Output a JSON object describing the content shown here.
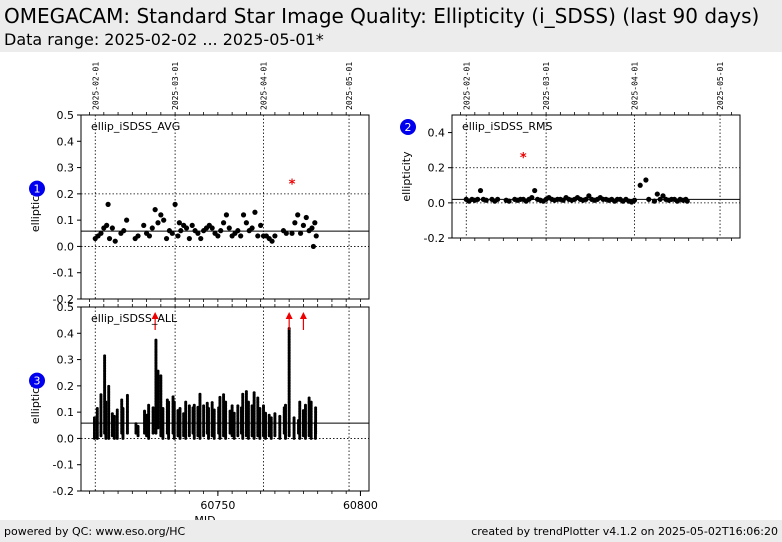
{
  "header": {
    "title": "OMEGACAM: Standard Star Image Quality: Ellipticity (i_SDSS) (last 90 days)",
    "subtitle": "Data range: 2025-02-02 ... 2025-05-01*"
  },
  "footer": {
    "left": "powered by QC: www.eso.org/HC",
    "right": "created by trendPlotter v4.1.2 on 2025-05-02T16:06:20"
  },
  "colors": {
    "badge": "#0000ee",
    "outlier": "#ee0000",
    "points": "#000000"
  },
  "chart_data": [
    {
      "type": "scatter",
      "label": "ellip_iSDSS_AVG",
      "badge": "1",
      "ylabel": "ellipticity",
      "ylim": [
        -0.2,
        0.5
      ],
      "yticks": [
        "-0.2",
        "-0.1",
        "0.0",
        "0.1",
        "0.2",
        "0.3",
        "0.4",
        "0.5"
      ],
      "xlim": [
        60702,
        60803
      ],
      "date_lines": [
        {
          "label": "2025-02-01",
          "mjd": 60707
        },
        {
          "label": "2025-03-01",
          "mjd": 60735
        },
        {
          "label": "2025-04-01",
          "mjd": 60766
        },
        {
          "label": "2025-05-01",
          "mjd": 60796
        }
      ],
      "reference_line": 0.058,
      "dotted_line": 0.2,
      "points": [
        [
          60707,
          0.03
        ],
        [
          60708,
          0.04
        ],
        [
          60709,
          0.05
        ],
        [
          60710,
          0.07
        ],
        [
          60711,
          0.08
        ],
        [
          60711.5,
          0.16
        ],
        [
          60712,
          0.03
        ],
        [
          60713,
          0.07
        ],
        [
          60714,
          0.02
        ],
        [
          60716,
          0.05
        ],
        [
          60717,
          0.06
        ],
        [
          60718,
          0.1
        ],
        [
          60721,
          0.03
        ],
        [
          60722,
          0.04
        ],
        [
          60724,
          0.08
        ],
        [
          60725,
          0.05
        ],
        [
          60726,
          0.04
        ],
        [
          60727,
          0.07
        ],
        [
          60728,
          0.14
        ],
        [
          60729,
          0.09
        ],
        [
          60730,
          0.12
        ],
        [
          60731,
          0.1
        ],
        [
          60732,
          0.03
        ],
        [
          60733,
          0.06
        ],
        [
          60734,
          0.05
        ],
        [
          60735,
          0.16
        ],
        [
          60736,
          0.04
        ],
        [
          60736.5,
          0.09
        ],
        [
          60737,
          0.06
        ],
        [
          60738,
          0.08
        ],
        [
          60739,
          0.07
        ],
        [
          60740,
          0.03
        ],
        [
          60741,
          0.08
        ],
        [
          60742,
          0.06
        ],
        [
          60743,
          0.05
        ],
        [
          60744,
          0.03
        ],
        [
          60745,
          0.06
        ],
        [
          60746,
          0.07
        ],
        [
          60747,
          0.08
        ],
        [
          60748,
          0.07
        ],
        [
          60749,
          0.05
        ],
        [
          60750,
          0.04
        ],
        [
          60751,
          0.06
        ],
        [
          60752,
          0.09
        ],
        [
          60753,
          0.12
        ],
        [
          60754,
          0.07
        ],
        [
          60755,
          0.04
        ],
        [
          60756,
          0.05
        ],
        [
          60757,
          0.06
        ],
        [
          60758,
          0.04
        ],
        [
          60759,
          0.12
        ],
        [
          60760,
          0.09
        ],
        [
          60761,
          0.06
        ],
        [
          60762,
          0.07
        ],
        [
          60763,
          0.13
        ],
        [
          60764,
          0.04
        ],
        [
          60765,
          0.08
        ],
        [
          60766,
          0.04
        ],
        [
          60767,
          0.04
        ],
        [
          60768,
          0.03
        ],
        [
          60769,
          0.02
        ],
        [
          60770,
          0.04
        ],
        [
          60773,
          0.06
        ],
        [
          60774,
          0.05
        ],
        [
          60776,
          0.05
        ],
        [
          60777,
          0.09
        ],
        [
          60778,
          0.12
        ],
        [
          60779,
          0.05
        ],
        [
          60780,
          0.08
        ],
        [
          60781,
          0.11
        ],
        [
          60782,
          0.06
        ],
        [
          60783,
          0.07
        ],
        [
          60783.5,
          0.0
        ],
        [
          60784,
          0.09
        ],
        [
          60784.5,
          0.04
        ]
      ],
      "outliers": [
        [
          60776,
          0.24
        ]
      ]
    },
    {
      "type": "scatter",
      "label": "ellip_iSDSS_RMS",
      "badge": "2",
      "ylabel": "ellipticity",
      "ylim": [
        -0.2,
        0.5
      ],
      "yticks": [
        "-0.2",
        "0.0",
        "0.2",
        "0.4"
      ],
      "xlim": [
        60702,
        60803
      ],
      "date_lines": [
        {
          "label": "2025-02-01",
          "mjd": 60707
        },
        {
          "label": "2025-03-01",
          "mjd": 60735
        },
        {
          "label": "2025-04-01",
          "mjd": 60766
        },
        {
          "label": "2025-05-01",
          "mjd": 60796
        }
      ],
      "reference_line": 0.02,
      "dotted_line": 0.2,
      "points": [
        [
          60707,
          0.02
        ],
        [
          60708,
          0.01
        ],
        [
          60709,
          0.02
        ],
        [
          60710,
          0.015
        ],
        [
          60711,
          0.02
        ],
        [
          60712,
          0.07
        ],
        [
          60713,
          0.02
        ],
        [
          60714,
          0.015
        ],
        [
          60716,
          0.02
        ],
        [
          60717,
          0.01
        ],
        [
          60718,
          0.02
        ],
        [
          60721,
          0.015
        ],
        [
          60722,
          0.01
        ],
        [
          60724,
          0.02
        ],
        [
          60725,
          0.015
        ],
        [
          60726,
          0.02
        ],
        [
          60727,
          0.02
        ],
        [
          60728,
          0.01
        ],
        [
          60729,
          0.02
        ],
        [
          60730,
          0.03
        ],
        [
          60731,
          0.07
        ],
        [
          60732,
          0.02
        ],
        [
          60733,
          0.015
        ],
        [
          60734,
          0.01
        ],
        [
          60735,
          0.02
        ],
        [
          60736,
          0.03
        ],
        [
          60737,
          0.02
        ],
        [
          60738,
          0.015
        ],
        [
          60739,
          0.02
        ],
        [
          60740,
          0.02
        ],
        [
          60741,
          0.015
        ],
        [
          60742,
          0.03
        ],
        [
          60743,
          0.02
        ],
        [
          60744,
          0.015
        ],
        [
          60745,
          0.02
        ],
        [
          60746,
          0.03
        ],
        [
          60747,
          0.02
        ],
        [
          60748,
          0.015
        ],
        [
          60749,
          0.02
        ],
        [
          60750,
          0.04
        ],
        [
          60751,
          0.02
        ],
        [
          60752,
          0.015
        ],
        [
          60753,
          0.02
        ],
        [
          60754,
          0.03
        ],
        [
          60755,
          0.02
        ],
        [
          60756,
          0.02
        ],
        [
          60757,
          0.015
        ],
        [
          60758,
          0.02
        ],
        [
          60759,
          0.01
        ],
        [
          60760,
          0.02
        ],
        [
          60761,
          0.02
        ],
        [
          60762,
          0.01
        ],
        [
          60763,
          0.02
        ],
        [
          60764,
          0.01
        ],
        [
          60765,
          0.005
        ],
        [
          60766,
          0.015
        ],
        [
          60768,
          0.1
        ],
        [
          60770,
          0.13
        ],
        [
          60771,
          0.02
        ],
        [
          60773,
          0.01
        ],
        [
          60774,
          0.05
        ],
        [
          60775,
          0.02
        ],
        [
          60776,
          0.04
        ],
        [
          60777,
          0.02
        ],
        [
          60778,
          0.015
        ],
        [
          60779,
          0.02
        ],
        [
          60780,
          0.02
        ],
        [
          60781,
          0.01
        ],
        [
          60782,
          0.02
        ],
        [
          60783,
          0.015
        ],
        [
          60784,
          0.02
        ],
        [
          60784.5,
          0.01
        ]
      ],
      "outliers": [
        [
          60727,
          0.26
        ]
      ]
    },
    {
      "type": "scatter",
      "label": "ellip_iSDSS_ALL",
      "badge": "3",
      "ylabel": "ellipticity",
      "xlabel": "MJD",
      "ylim": [
        -0.2,
        0.5
      ],
      "yticks": [
        "-0.2",
        "-0.1",
        "0.0",
        "0.1",
        "0.2",
        "0.3",
        "0.4",
        "0.5"
      ],
      "xlim": [
        60702,
        60803
      ],
      "xticks": [
        60750,
        60800
      ],
      "date_lines": [
        {
          "label": "2025-02-01",
          "mjd": 60707
        },
        {
          "label": "2025-03-01",
          "mjd": 60735
        },
        {
          "label": "2025-04-01",
          "mjd": 60766
        },
        {
          "label": "2025-05-01",
          "mjd": 60796
        }
      ],
      "reference_line": 0.058,
      "columns": [
        [
          60707,
          0.0,
          0.08
        ],
        [
          60708,
          0.0,
          0.12
        ],
        [
          60709,
          0.01,
          0.17
        ],
        [
          60710,
          0.02,
          0.32
        ],
        [
          60711,
          0.0,
          0.14
        ],
        [
          60712,
          0.0,
          0.2
        ],
        [
          60713,
          0.01,
          0.1
        ],
        [
          60714,
          0.0,
          0.09
        ],
        [
          60715,
          0.0,
          0.11
        ],
        [
          60716,
          0.02,
          0.15
        ],
        [
          60717,
          0.0,
          0.12
        ],
        [
          60718,
          0.02,
          0.17
        ],
        [
          60721,
          0.02,
          0.06
        ],
        [
          60722,
          0.01,
          0.05
        ],
        [
          60724,
          0.02,
          0.11
        ],
        [
          60725,
          0.01,
          0.09
        ],
        [
          60726,
          0.0,
          0.13
        ],
        [
          60727,
          0.02,
          0.12
        ],
        [
          60728,
          0.02,
          0.38
        ],
        [
          60729,
          0.04,
          0.26
        ],
        [
          60730,
          0.01,
          0.24
        ],
        [
          60731,
          0.0,
          0.12
        ],
        [
          60732,
          0.02,
          0.15
        ],
        [
          60733,
          0.0,
          0.14
        ],
        [
          60734,
          0.02,
          0.16
        ],
        [
          60735,
          0.0,
          0.14
        ],
        [
          60736,
          0.01,
          0.11
        ],
        [
          60737,
          0.0,
          0.12
        ],
        [
          60738,
          0.01,
          0.1
        ],
        [
          60739,
          0.0,
          0.14
        ],
        [
          60740,
          0.01,
          0.13
        ],
        [
          60741,
          0.02,
          0.12
        ],
        [
          60742,
          0.0,
          0.13
        ],
        [
          60743,
          0.01,
          0.12
        ],
        [
          60744,
          0.0,
          0.17
        ],
        [
          60745,
          0.01,
          0.13
        ],
        [
          60746,
          0.02,
          0.14
        ],
        [
          60747,
          0.0,
          0.12
        ],
        [
          60748,
          0.01,
          0.14
        ],
        [
          60749,
          0.0,
          0.11
        ],
        [
          60750,
          0.02,
          0.12
        ],
        [
          60751,
          0.0,
          0.16
        ],
        [
          60752,
          0.01,
          0.17
        ],
        [
          60753,
          0.0,
          0.14
        ],
        [
          60754,
          0.02,
          0.11
        ],
        [
          60755,
          0.01,
          0.13
        ],
        [
          60756,
          0.0,
          0.1
        ],
        [
          60757,
          0.01,
          0.13
        ],
        [
          60758,
          0.02,
          0.12
        ],
        [
          60759,
          0.0,
          0.17
        ],
        [
          60760,
          0.01,
          0.18
        ],
        [
          60761,
          0.0,
          0.14
        ],
        [
          60762,
          0.01,
          0.13
        ],
        [
          60763,
          0.0,
          0.18
        ],
        [
          60764,
          0.01,
          0.16
        ],
        [
          60765,
          0.0,
          0.12
        ],
        [
          60766,
          0.01,
          0.13
        ],
        [
          60767,
          0.0,
          0.1
        ],
        [
          60768,
          0.01,
          0.09
        ],
        [
          60769,
          0.0,
          0.08
        ],
        [
          60770,
          0.01,
          0.1
        ],
        [
          60772,
          0.0,
          0.09
        ],
        [
          60773,
          0.02,
          0.12
        ],
        [
          60774,
          0.0,
          0.13
        ],
        [
          60775,
          0.01,
          0.42
        ],
        [
          60777,
          0.0,
          0.08
        ],
        [
          60778,
          0.02,
          0.07
        ],
        [
          60779,
          0.0,
          0.14
        ],
        [
          60780,
          0.01,
          0.11
        ],
        [
          60781,
          0.0,
          0.13
        ],
        [
          60782,
          0.01,
          0.16
        ],
        [
          60783,
          0.0,
          0.14
        ],
        [
          60784,
          0.02,
          0.12
        ],
        [
          60784.5,
          0.0,
          0.06
        ]
      ],
      "arrows": [
        60728,
        60775,
        60780
      ]
    }
  ]
}
